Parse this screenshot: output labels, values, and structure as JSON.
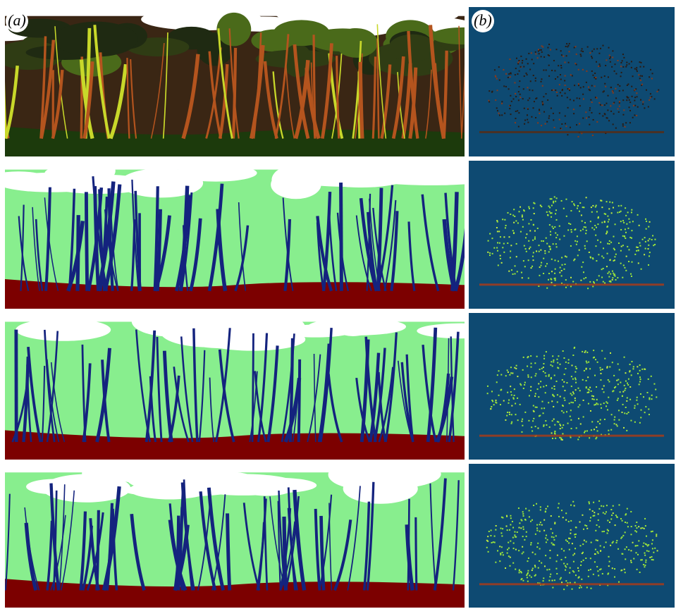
{
  "panels": {
    "a": {
      "label": "(a)"
    },
    "b": {
      "label": "(b)"
    }
  }
}
